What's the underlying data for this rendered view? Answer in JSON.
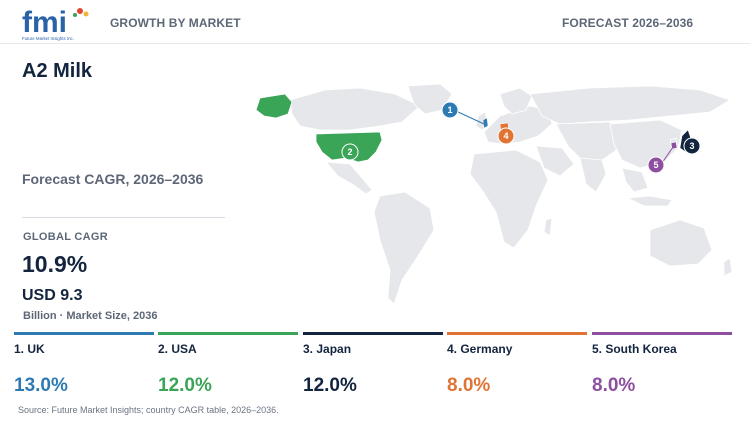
{
  "header": {
    "brand": "fmi",
    "brand_tagline": "Future Market Insights Inc.",
    "left_label": "GROWTH BY MARKET",
    "right_label": "FORECAST 2026–2036"
  },
  "title": "A2 Milk",
  "subtitle": "Forecast CAGR, 2026–2036",
  "global": {
    "label": "GLOBAL CAGR",
    "value": "10.9%",
    "market_value": "USD 9.3",
    "market_note": "Billion · Market Size, 2036"
  },
  "colors": {
    "uk": "#2e7bb4",
    "usa": "#3aa457",
    "japan": "#13243f",
    "germany": "#e07434",
    "south_korea": "#8e4fa0",
    "land": "#e6e7ea"
  },
  "chart_data": {
    "type": "table",
    "title": "A2 Milk",
    "subtitle": "Forecast CAGR, 2026–2036",
    "categories": [
      "UK",
      "USA",
      "Japan",
      "Germany",
      "South Korea"
    ],
    "series": [
      {
        "values": [
          13.0,
          12.0,
          12.0,
          8.0,
          8.0
        ]
      }
    ],
    "countries": [
      {
        "rank": "1",
        "label": "1. UK",
        "cagr": "13.0%",
        "color": "#2e7bb4"
      },
      {
        "rank": "2",
        "label": "2. USA",
        "cagr": "12.0%",
        "color": "#3aa457"
      },
      {
        "rank": "3",
        "label": "3. Japan",
        "cagr": "12.0%",
        "color": "#13243f"
      },
      {
        "rank": "4",
        "label": "4. Germany",
        "cagr": "8.0%",
        "color": "#e07434"
      },
      {
        "rank": "5",
        "label": "5. South Korea",
        "cagr": "8.0%",
        "color": "#8e4fa0"
      }
    ]
  },
  "source": "Source: Future Market Insights; country CAGR table, 2026–2036."
}
